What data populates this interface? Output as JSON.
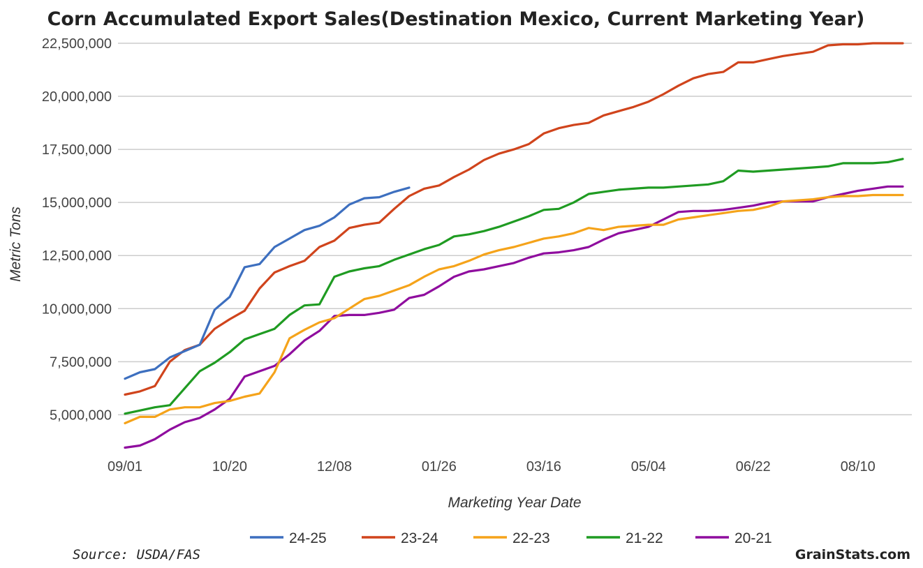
{
  "colors": {
    "24-25": "#3d6fbf",
    "23-24": "#d0441c",
    "22-23": "#f5a31a",
    "21-22": "#1f9b22",
    "20-21": "#8f0d9e",
    "grid": "#cccccc"
  },
  "chart_data": {
    "type": "line",
    "title": "Corn Accumulated Export Sales(Destination Mexico, Current Marketing Year)",
    "xlabel": "Marketing Year Date",
    "ylabel": "Metric Tons",
    "ylim": [
      3500000,
      22500000
    ],
    "x_count": 53,
    "yticks": [
      {
        "value": 5000000,
        "label": "5,000,000"
      },
      {
        "value": 7500000,
        "label": "7,500,000"
      },
      {
        "value": 10000000,
        "label": "10,000,000"
      },
      {
        "value": 12500000,
        "label": "12,500,000"
      },
      {
        "value": 15000000,
        "label": "15,000,000"
      },
      {
        "value": 17500000,
        "label": "17,500,000"
      },
      {
        "value": 20000000,
        "label": "20,000,000"
      },
      {
        "value": 22500000,
        "label": "22,500,000"
      }
    ],
    "xticks": [
      {
        "index": 0,
        "label": "09/01"
      },
      {
        "index": 7,
        "label": "10/20"
      },
      {
        "index": 14,
        "label": "12/08"
      },
      {
        "index": 21,
        "label": "01/26"
      },
      {
        "index": 28,
        "label": "03/16"
      },
      {
        "index": 35,
        "label": "05/04"
      },
      {
        "index": 42,
        "label": "06/22"
      },
      {
        "index": 49,
        "label": "08/10"
      }
    ],
    "series": [
      {
        "name": "24-25",
        "values": [
          6700000,
          7000000,
          7150000,
          7700000,
          8000000,
          8300000,
          9950000,
          10550000,
          11950000,
          12100000,
          12900000,
          13300000,
          13700000,
          13900000,
          14300000,
          14900000,
          15200000,
          15250000,
          15500000,
          15700000
        ]
      },
      {
        "name": "23-24",
        "values": [
          5950000,
          6100000,
          6350000,
          7500000,
          8050000,
          8300000,
          9050000,
          9500000,
          9900000,
          10950000,
          11700000,
          12000000,
          12250000,
          12900000,
          13200000,
          13800000,
          13950000,
          14050000,
          14700000,
          15300000,
          15650000,
          15800000,
          16200000,
          16550000,
          17000000,
          17300000,
          17500000,
          17750000,
          18250000,
          18500000,
          18650000,
          18750000,
          19100000,
          19300000,
          19500000,
          19750000,
          20100000,
          20500000,
          20850000,
          21050000,
          21150000,
          21600000,
          21600000,
          21750000,
          21900000,
          22000000,
          22100000,
          22400000,
          22450000,
          22450000,
          22500000,
          22500000,
          22500000
        ]
      },
      {
        "name": "22-23",
        "values": [
          4600000,
          4900000,
          4900000,
          5250000,
          5350000,
          5350000,
          5550000,
          5650000,
          5850000,
          6000000,
          7000000,
          8600000,
          9000000,
          9350000,
          9550000,
          10000000,
          10450000,
          10600000,
          10850000,
          11100000,
          11500000,
          11850000,
          12000000,
          12250000,
          12550000,
          12750000,
          12900000,
          13100000,
          13300000,
          13400000,
          13550000,
          13800000,
          13700000,
          13850000,
          13900000,
          13950000,
          13950000,
          14200000,
          14300000,
          14400000,
          14500000,
          14600000,
          14650000,
          14800000,
          15050000,
          15100000,
          15150000,
          15250000,
          15300000,
          15300000,
          15350000,
          15350000,
          15350000
        ]
      },
      {
        "name": "21-22",
        "values": [
          5050000,
          5200000,
          5350000,
          5450000,
          6250000,
          7050000,
          7450000,
          7950000,
          8550000,
          8800000,
          9050000,
          9700000,
          10150000,
          10200000,
          11500000,
          11750000,
          11900000,
          12000000,
          12300000,
          12550000,
          12800000,
          13000000,
          13400000,
          13500000,
          13650000,
          13850000,
          14100000,
          14350000,
          14650000,
          14700000,
          15000000,
          15400000,
          15500000,
          15600000,
          15650000,
          15700000,
          15700000,
          15750000,
          15800000,
          15850000,
          16000000,
          16500000,
          16450000,
          16500000,
          16550000,
          16600000,
          16650000,
          16700000,
          16850000,
          16850000,
          16850000,
          16900000,
          17050000
        ]
      },
      {
        "name": "20-21",
        "values": [
          3450000,
          3550000,
          3850000,
          4300000,
          4650000,
          4850000,
          5250000,
          5750000,
          6800000,
          7050000,
          7300000,
          7850000,
          8500000,
          8950000,
          9650000,
          9700000,
          9700000,
          9800000,
          9950000,
          10500000,
          10650000,
          11050000,
          11500000,
          11750000,
          11850000,
          12000000,
          12150000,
          12400000,
          12600000,
          12650000,
          12750000,
          12900000,
          13250000,
          13550000,
          13700000,
          13850000,
          14200000,
          14550000,
          14600000,
          14600000,
          14650000,
          14750000,
          14850000,
          15000000,
          15050000,
          15050000,
          15050000,
          15250000,
          15400000,
          15550000,
          15650000,
          15750000,
          15750000
        ]
      }
    ]
  },
  "footer": {
    "source": "Source: USDA/FAS",
    "credit": "GrainStats.com"
  }
}
